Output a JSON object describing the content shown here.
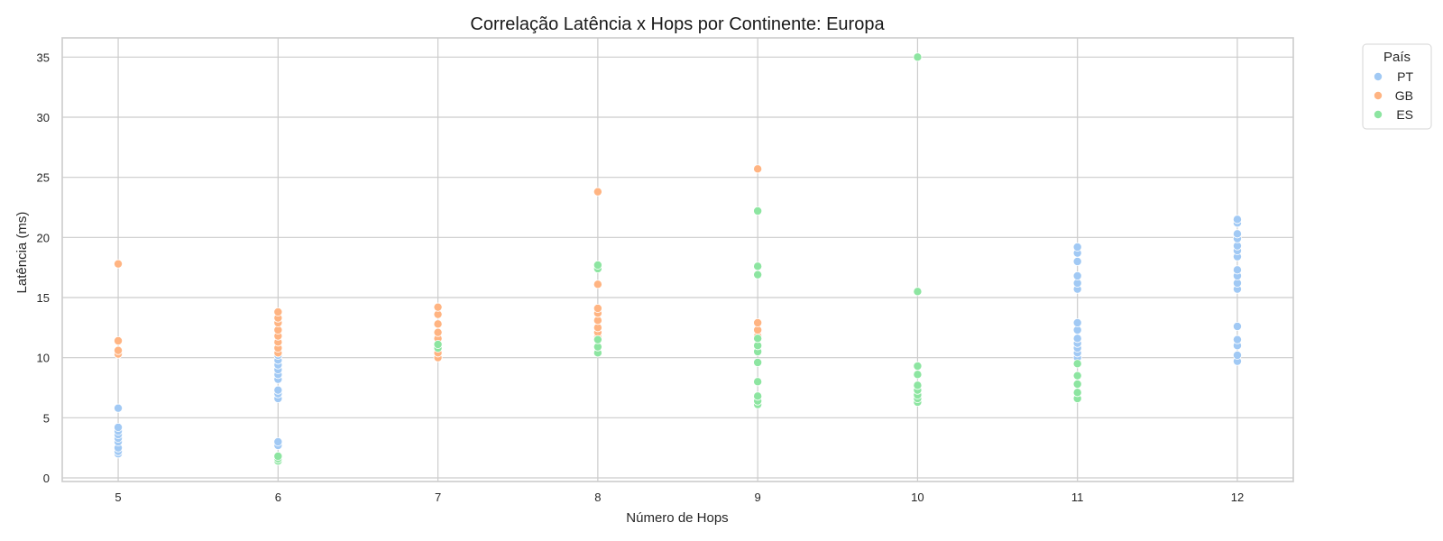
{
  "chart_data": {
    "type": "scatter",
    "title": "Correlação Latência x Hops por Continente: Europa",
    "xlabel": "Número de Hops",
    "ylabel": "Latência (ms)",
    "xlim": [
      4.65,
      12.35
    ],
    "ylim": [
      -0.3,
      36.6
    ],
    "x_ticks": [
      5,
      6,
      7,
      8,
      9,
      10,
      11,
      12
    ],
    "y_ticks": [
      0,
      5,
      10,
      15,
      20,
      25,
      30,
      35
    ],
    "grid": true,
    "legend": {
      "title": "País",
      "position": "outside-top-right"
    },
    "series": [
      {
        "name": "PT",
        "color": "#a1c9f4",
        "points": [
          [
            5,
            2.0
          ],
          [
            5,
            2.2
          ],
          [
            5,
            2.5
          ],
          [
            5,
            3.0
          ],
          [
            5,
            3.3
          ],
          [
            5,
            3.6
          ],
          [
            5,
            3.9
          ],
          [
            5,
            4.2
          ],
          [
            5,
            5.8
          ],
          [
            6,
            2.7
          ],
          [
            6,
            3.0
          ],
          [
            6,
            6.6
          ],
          [
            6,
            7.0
          ],
          [
            6,
            7.3
          ],
          [
            6,
            8.2
          ],
          [
            6,
            8.6
          ],
          [
            6,
            9.0
          ],
          [
            6,
            9.4
          ],
          [
            6,
            9.8
          ],
          [
            6,
            10.2
          ],
          [
            6,
            10.8
          ],
          [
            6,
            11.3
          ],
          [
            6,
            12.2
          ],
          [
            11,
            9.6
          ],
          [
            11,
            10.0
          ],
          [
            11,
            10.4
          ],
          [
            11,
            10.8
          ],
          [
            11,
            11.2
          ],
          [
            11,
            11.6
          ],
          [
            11,
            12.3
          ],
          [
            11,
            12.9
          ],
          [
            11,
            15.7
          ],
          [
            11,
            16.2
          ],
          [
            11,
            16.8
          ],
          [
            11,
            18.0
          ],
          [
            11,
            18.7
          ],
          [
            11,
            19.2
          ],
          [
            12,
            9.7
          ],
          [
            12,
            10.2
          ],
          [
            12,
            11.0
          ],
          [
            12,
            11.5
          ],
          [
            12,
            12.6
          ],
          [
            12,
            15.7
          ],
          [
            12,
            16.2
          ],
          [
            12,
            16.8
          ],
          [
            12,
            17.3
          ],
          [
            12,
            18.4
          ],
          [
            12,
            18.9
          ],
          [
            12,
            19.3
          ],
          [
            12,
            19.9
          ],
          [
            12,
            20.3
          ],
          [
            12,
            21.2
          ],
          [
            12,
            21.5
          ]
        ]
      },
      {
        "name": "GB",
        "color": "#ffb482",
        "points": [
          [
            5,
            10.3
          ],
          [
            5,
            10.6
          ],
          [
            5,
            11.4
          ],
          [
            5,
            17.8
          ],
          [
            6,
            10.4
          ],
          [
            6,
            10.8
          ],
          [
            6,
            11.3
          ],
          [
            6,
            11.8
          ],
          [
            6,
            12.3
          ],
          [
            6,
            12.9
          ],
          [
            6,
            13.3
          ],
          [
            6,
            13.8
          ],
          [
            7,
            10.0
          ],
          [
            7,
            10.4
          ],
          [
            7,
            11.0
          ],
          [
            7,
            11.6
          ],
          [
            7,
            12.1
          ],
          [
            7,
            12.8
          ],
          [
            7,
            13.6
          ],
          [
            7,
            14.2
          ],
          [
            8,
            11.7
          ],
          [
            8,
            12.1
          ],
          [
            8,
            12.5
          ],
          [
            8,
            13.1
          ],
          [
            8,
            13.7
          ],
          [
            8,
            14.1
          ],
          [
            8,
            16.1
          ],
          [
            8,
            23.8
          ],
          [
            9,
            11.8
          ],
          [
            9,
            12.3
          ],
          [
            9,
            12.9
          ],
          [
            9,
            25.7
          ]
        ]
      },
      {
        "name": "ES",
        "color": "#8de5a1",
        "points": [
          [
            6,
            1.4
          ],
          [
            6,
            1.6
          ],
          [
            6,
            1.8
          ],
          [
            7,
            10.8
          ],
          [
            7,
            11.1
          ],
          [
            8,
            10.4
          ],
          [
            8,
            10.9
          ],
          [
            8,
            11.5
          ],
          [
            8,
            17.4
          ],
          [
            8,
            17.7
          ],
          [
            9,
            6.1
          ],
          [
            9,
            6.4
          ],
          [
            9,
            6.8
          ],
          [
            9,
            8.0
          ],
          [
            9,
            9.6
          ],
          [
            9,
            10.5
          ],
          [
            9,
            11.0
          ],
          [
            9,
            11.6
          ],
          [
            9,
            16.9
          ],
          [
            9,
            17.6
          ],
          [
            9,
            22.2
          ],
          [
            10,
            6.3
          ],
          [
            10,
            6.6
          ],
          [
            10,
            6.9
          ],
          [
            10,
            7.3
          ],
          [
            10,
            7.7
          ],
          [
            10,
            8.6
          ],
          [
            10,
            9.3
          ],
          [
            10,
            15.5
          ],
          [
            10,
            35.0
          ],
          [
            11,
            6.6
          ],
          [
            11,
            7.1
          ],
          [
            11,
            7.8
          ],
          [
            11,
            8.5
          ],
          [
            11,
            9.5
          ]
        ]
      }
    ]
  }
}
